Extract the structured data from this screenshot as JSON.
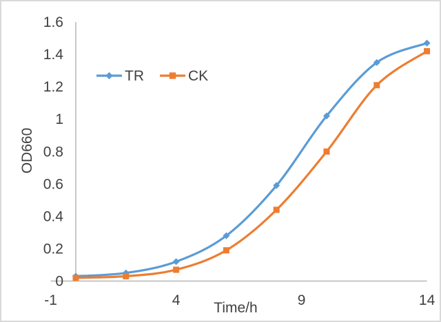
{
  "chart_data": {
    "type": "line",
    "xlabel": "Time/h",
    "ylabel": "OD660",
    "x": [
      0,
      2,
      4,
      6,
      8,
      10,
      12,
      14
    ],
    "series": [
      {
        "name": "TR",
        "color": "#5B9BD5",
        "marker": "diamond",
        "values": [
          0.03,
          0.05,
          0.12,
          0.28,
          0.59,
          1.02,
          1.35,
          1.47
        ]
      },
      {
        "name": "CK",
        "color": "#ED7D31",
        "marker": "square",
        "values": [
          0.02,
          0.03,
          0.07,
          0.19,
          0.44,
          0.8,
          1.21,
          1.42
        ]
      }
    ],
    "xlim": [
      -1,
      14
    ],
    "ylim": [
      0,
      1.6
    ],
    "x_tick_values": [
      -1,
      4,
      9,
      14
    ],
    "x_tick_labels": [
      "-1",
      "4",
      "9",
      "14"
    ],
    "y_tick_values": [
      0,
      0.2,
      0.4,
      0.6,
      0.8,
      1,
      1.2,
      1.4,
      1.6
    ],
    "y_tick_labels": [
      "0",
      "0.2",
      "0.4",
      "0.6",
      "0.8",
      "1",
      "1.2",
      "1.4",
      "1.6"
    ],
    "grid": false,
    "smoothed_lines": true,
    "legend_position": "inside-top-left",
    "colors": {
      "axis_line": "#BFBFBF",
      "tick_text": "#404040",
      "background": "#FFFFFF",
      "frame_border": "#D9D9D9"
    }
  }
}
